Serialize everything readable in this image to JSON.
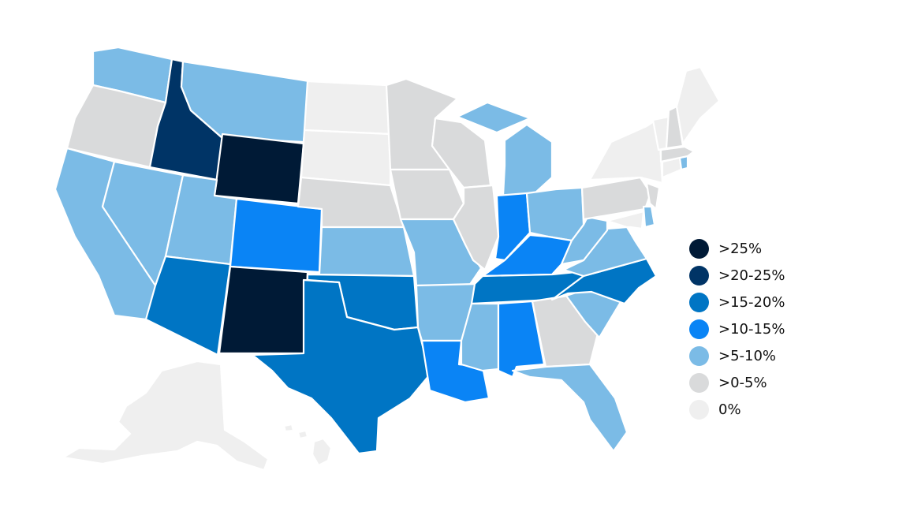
{
  "colors": {
    "c25": "#001a36",
    "c20_25": "#003466",
    "c15_20": "#0075c4",
    "c10_15": "#0a84f5",
    "c5_10": "#7bbbe6",
    "c0_5": "#d9dadb",
    "c0": "#efefef"
  },
  "legend": [
    {
      "label": ">25%",
      "color": "#001a36"
    },
    {
      "label": ">20-25%",
      "color": "#003466"
    },
    {
      "label": ">15-20%",
      "color": "#0075c4"
    },
    {
      "label": ">10-15%",
      "color": "#0a84f5"
    },
    {
      "label": ">5-10%",
      "color": "#7bbbe6"
    },
    {
      "label": ">0-5%",
      "color": "#d9dadb"
    },
    {
      "label": "0%",
      "color": "#efefef"
    }
  ],
  "states": [
    {
      "id": "WA",
      "category": ">5-10%"
    },
    {
      "id": "OR",
      "category": ">0-5%"
    },
    {
      "id": "CA",
      "category": ">5-10%"
    },
    {
      "id": "ID",
      "category": ">20-25%"
    },
    {
      "id": "NV",
      "category": ">5-10%"
    },
    {
      "id": "MT",
      "category": ">5-10%"
    },
    {
      "id": "WY",
      "category": ">25%"
    },
    {
      "id": "UT",
      "category": ">5-10%"
    },
    {
      "id": "AZ",
      "category": ">15-20%"
    },
    {
      "id": "CO",
      "category": ">10-15%"
    },
    {
      "id": "NM",
      "category": ">25%"
    },
    {
      "id": "ND",
      "category": "0%"
    },
    {
      "id": "SD",
      "category": "0%"
    },
    {
      "id": "NE",
      "category": ">0-5%"
    },
    {
      "id": "KS",
      "category": ">5-10%"
    },
    {
      "id": "OK",
      "category": ">15-20%"
    },
    {
      "id": "TX",
      "category": ">15-20%"
    },
    {
      "id": "MN",
      "category": ">0-5%"
    },
    {
      "id": "IA",
      "category": ">0-5%"
    },
    {
      "id": "MO",
      "category": ">5-10%"
    },
    {
      "id": "AR",
      "category": ">5-10%"
    },
    {
      "id": "LA",
      "category": ">10-15%"
    },
    {
      "id": "WI",
      "category": ">0-5%"
    },
    {
      "id": "IL",
      "category": ">0-5%"
    },
    {
      "id": "MI",
      "category": ">5-10%"
    },
    {
      "id": "IN",
      "category": ">10-15%"
    },
    {
      "id": "OH",
      "category": ">5-10%"
    },
    {
      "id": "KY",
      "category": ">10-15%"
    },
    {
      "id": "TN",
      "category": ">15-20%"
    },
    {
      "id": "MS",
      "category": ">5-10%"
    },
    {
      "id": "AL",
      "category": ">10-15%"
    },
    {
      "id": "GA",
      "category": ">0-5%"
    },
    {
      "id": "FL",
      "category": ">5-10%"
    },
    {
      "id": "SC",
      "category": ">5-10%"
    },
    {
      "id": "NC",
      "category": ">15-20%"
    },
    {
      "id": "VA",
      "category": ">5-10%"
    },
    {
      "id": "WV",
      "category": ">5-10%"
    },
    {
      "id": "PA",
      "category": ">0-5%"
    },
    {
      "id": "NY",
      "category": "0%"
    },
    {
      "id": "MD",
      "category": "0%"
    },
    {
      "id": "DE",
      "category": ">5-10%"
    },
    {
      "id": "NJ",
      "category": ">0-5%"
    },
    {
      "id": "CT",
      "category": "0%"
    },
    {
      "id": "RI",
      "category": ">5-10%"
    },
    {
      "id": "MA",
      "category": ">0-5%"
    },
    {
      "id": "VT",
      "category": "0%"
    },
    {
      "id": "NH",
      "category": ">0-5%"
    },
    {
      "id": "ME",
      "category": "0%"
    },
    {
      "id": "AK",
      "category": "0%"
    },
    {
      "id": "HI",
      "category": "0%"
    }
  ]
}
